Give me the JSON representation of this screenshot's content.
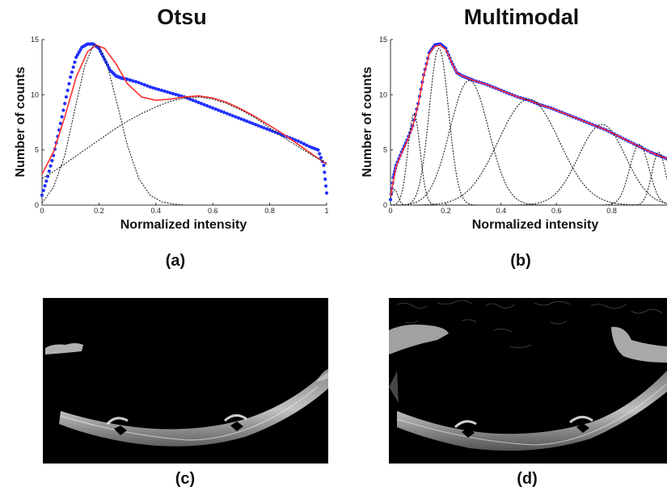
{
  "titles": {
    "left": "Otsu",
    "right": "Multimodal"
  },
  "captions": {
    "a": "(a)",
    "b": "(b)",
    "c": "(c)",
    "d": "(d)"
  },
  "colors": {
    "histogram": "#1f2fff",
    "fit": "#ff3030",
    "components": "#222222"
  },
  "chart_data": [
    {
      "type": "line",
      "id": "otsu",
      "title": "Otsu",
      "xlabel": "Normalized intensity",
      "ylabel": "Number of counts",
      "xlim": [
        0,
        1
      ],
      "ylim": [
        0,
        15
      ],
      "xticks": [
        0,
        0.2,
        0.4,
        0.6,
        0.8,
        1
      ],
      "xtick_labels": [
        "0",
        "0.2",
        "0.4",
        "0.6",
        "0.8",
        "1"
      ],
      "yticks": [
        0,
        5,
        10,
        15
      ],
      "ytick_labels": [
        "0",
        "5",
        "10",
        "15"
      ],
      "series": [
        {
          "role": "histogram",
          "style": "dots",
          "x": [
            0.0,
            0.02,
            0.04,
            0.06,
            0.08,
            0.1,
            0.12,
            0.14,
            0.16,
            0.18,
            0.2,
            0.22,
            0.24,
            0.26,
            0.28,
            0.3,
            0.34,
            0.38,
            0.42,
            0.46,
            0.5,
            0.54,
            0.58,
            0.62,
            0.66,
            0.7,
            0.74,
            0.78,
            0.82,
            0.86,
            0.9,
            0.94,
            0.97,
            0.99,
            1.0
          ],
          "y": [
            0.9,
            2.6,
            4.5,
            6.8,
            9.2,
            11.6,
            13.4,
            14.3,
            14.6,
            14.6,
            14.2,
            13.2,
            12.2,
            11.7,
            11.5,
            11.4,
            11.1,
            10.7,
            10.4,
            10.1,
            9.8,
            9.4,
            9.0,
            8.6,
            8.2,
            7.8,
            7.4,
            7.0,
            6.6,
            6.2,
            5.8,
            5.3,
            5.0,
            3.6,
            1.1
          ]
        },
        {
          "role": "fit",
          "style": "line",
          "x": [
            0.0,
            0.04,
            0.08,
            0.12,
            0.16,
            0.19,
            0.22,
            0.26,
            0.3,
            0.35,
            0.4,
            0.45,
            0.5,
            0.55,
            0.6,
            0.65,
            0.7,
            0.75,
            0.8,
            0.85,
            0.9,
            0.95,
            1.0
          ],
          "y": [
            2.8,
            4.8,
            8.0,
            11.6,
            13.9,
            14.5,
            14.2,
            12.8,
            11.0,
            9.8,
            9.5,
            9.6,
            9.8,
            9.9,
            9.7,
            9.3,
            8.7,
            8.0,
            7.2,
            6.4,
            5.5,
            4.6,
            3.7
          ]
        },
        {
          "role": "component",
          "style": "dashed",
          "x": [
            0.0,
            0.04,
            0.08,
            0.12,
            0.15,
            0.18,
            0.2,
            0.23,
            0.26,
            0.3,
            0.34,
            0.38,
            0.42,
            0.46,
            0.5,
            0.6,
            0.8,
            1.0
          ],
          "y": [
            0.2,
            1.6,
            4.5,
            9.2,
            12.6,
            14.5,
            14.4,
            12.6,
            9.6,
            5.4,
            2.4,
            0.9,
            0.3,
            0.1,
            0.0,
            0.0,
            0.0,
            0.0
          ]
        },
        {
          "role": "component",
          "style": "dashed",
          "x": [
            0.0,
            0.05,
            0.1,
            0.15,
            0.2,
            0.25,
            0.3,
            0.35,
            0.4,
            0.45,
            0.5,
            0.55,
            0.6,
            0.65,
            0.7,
            0.75,
            0.8,
            0.85,
            0.9,
            0.95,
            1.0
          ],
          "y": [
            2.4,
            3.2,
            4.1,
            5.0,
            5.9,
            6.8,
            7.6,
            8.3,
            8.9,
            9.4,
            9.7,
            9.8,
            9.6,
            9.2,
            8.6,
            7.9,
            7.0,
            6.1,
            5.3,
            4.5,
            3.8
          ]
        }
      ]
    },
    {
      "type": "line",
      "id": "multimodal",
      "title": "Multimodal",
      "xlabel": "Normalized intensity",
      "ylabel": "Number of counts",
      "xlim": [
        0,
        1
      ],
      "ylim": [
        0,
        15
      ],
      "xticks": [
        0,
        0.2,
        0.4,
        0.6,
        0.8
      ],
      "xtick_labels": [
        "0",
        "0.2",
        "0.4",
        "0.6",
        "0.8"
      ],
      "yticks": [
        0,
        5,
        10,
        15
      ],
      "ytick_labels": [
        "0",
        "5",
        "10",
        "15"
      ],
      "series": [
        {
          "role": "histogram",
          "style": "dots",
          "x": [
            0.0,
            0.01,
            0.02,
            0.04,
            0.06,
            0.08,
            0.1,
            0.12,
            0.14,
            0.16,
            0.18,
            0.2,
            0.22,
            0.24,
            0.26,
            0.28,
            0.3,
            0.34,
            0.38,
            0.42,
            0.46,
            0.5,
            0.54,
            0.58,
            0.62,
            0.66,
            0.7,
            0.74,
            0.78,
            0.82,
            0.86,
            0.9,
            0.94,
            0.97,
            1.0
          ],
          "y": [
            0.5,
            2.5,
            3.6,
            4.8,
            5.9,
            7.2,
            9.2,
            11.8,
            13.8,
            14.5,
            14.6,
            14.2,
            13.0,
            12.0,
            11.7,
            11.5,
            11.3,
            11.0,
            10.6,
            10.2,
            9.8,
            9.5,
            9.1,
            8.8,
            8.4,
            8.0,
            7.6,
            7.2,
            6.8,
            6.3,
            5.8,
            5.3,
            4.8,
            4.5,
            4.2
          ]
        },
        {
          "role": "fit",
          "style": "line",
          "x": [
            0.0,
            0.02,
            0.04,
            0.06,
            0.08,
            0.1,
            0.12,
            0.14,
            0.16,
            0.18,
            0.2,
            0.22,
            0.24,
            0.26,
            0.28,
            0.3,
            0.34,
            0.38,
            0.42,
            0.46,
            0.5,
            0.54,
            0.58,
            0.62,
            0.66,
            0.7,
            0.74,
            0.78,
            0.82,
            0.86,
            0.9,
            0.94,
            0.97,
            1.0
          ],
          "y": [
            0.8,
            3.5,
            4.7,
            5.8,
            7.1,
            9.1,
            11.7,
            13.7,
            14.4,
            14.5,
            14.1,
            13.0,
            12.0,
            11.7,
            11.5,
            11.3,
            11.0,
            10.6,
            10.2,
            9.8,
            9.5,
            9.1,
            8.8,
            8.4,
            8.0,
            7.6,
            7.2,
            6.8,
            6.3,
            5.8,
            5.3,
            4.8,
            4.5,
            4.2
          ]
        },
        {
          "role": "component",
          "style": "dashed",
          "gaussian": {
            "mu": 0.015,
            "sigma": 0.012,
            "amp": 1.4
          }
        },
        {
          "role": "component",
          "style": "dashed",
          "gaussian": {
            "mu": 0.085,
            "sigma": 0.022,
            "amp": 8.3
          }
        },
        {
          "role": "component",
          "style": "dashed",
          "gaussian": {
            "mu": 0.175,
            "sigma": 0.035,
            "amp": 14.2
          }
        },
        {
          "role": "component",
          "style": "dashed",
          "gaussian": {
            "mu": 0.285,
            "sigma": 0.07,
            "amp": 11.3
          }
        },
        {
          "role": "component",
          "style": "dashed",
          "gaussian": {
            "mu": 0.5,
            "sigma": 0.11,
            "amp": 9.6
          }
        },
        {
          "role": "component",
          "style": "dashed",
          "gaussian": {
            "mu": 0.765,
            "sigma": 0.085,
            "amp": 7.3
          }
        },
        {
          "role": "component",
          "style": "dashed",
          "gaussian": {
            "mu": 0.9,
            "sigma": 0.035,
            "amp": 5.5
          }
        },
        {
          "role": "component",
          "style": "dashed",
          "gaussian": {
            "mu": 0.97,
            "sigma": 0.025,
            "amp": 4.8
          }
        }
      ]
    }
  ]
}
